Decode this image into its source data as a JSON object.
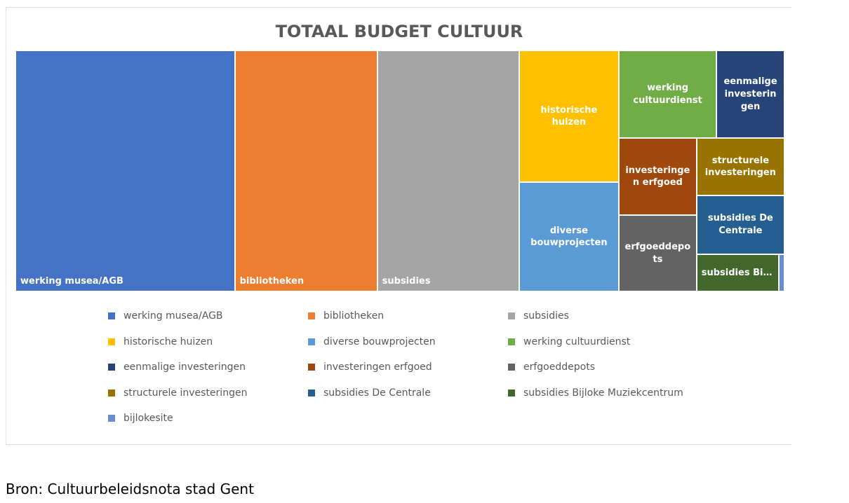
{
  "chart_data": {
    "type": "treemap",
    "title": "TOTAAL BUDGET CULTUUR",
    "categories": [
      "werking musea/AGB",
      "bibliotheken",
      "subsidies",
      "historische huizen",
      "diverse bouwprojecten",
      "werking cultuurdienst",
      "eenmalige investeringen",
      "investeringen erfgoed",
      "erfgoeddepots",
      "structurele investeringen",
      "subsidies De Centrale",
      "subsidies Bijloke Muziekcentrum",
      "bijlokesite"
    ],
    "values": [
      105.3,
      68.4,
      68.1,
      26.2,
      21.7,
      17.1,
      11.9,
      11.9,
      11.8,
      10.0,
      10.3,
      6.1,
      0.4
    ],
    "colors": [
      "#4472c4",
      "#ed7d31",
      "#a5a5a5",
      "#ffc000",
      "#5b9bd5",
      "#70ad47",
      "#264478",
      "#9e480e",
      "#636363",
      "#997300",
      "#255e91",
      "#43682b",
      "#698ed0"
    ],
    "legend": "bottom"
  },
  "caption": "Bron: Cultuurbeleidsnota stad Gent"
}
